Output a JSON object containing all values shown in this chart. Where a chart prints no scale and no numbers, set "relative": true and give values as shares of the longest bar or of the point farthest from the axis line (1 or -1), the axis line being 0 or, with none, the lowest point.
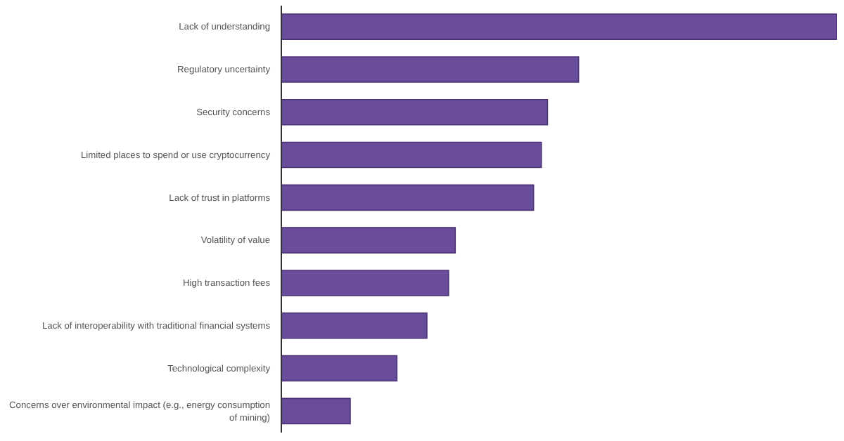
{
  "chart_data": {
    "type": "bar",
    "orientation": "horizontal",
    "relative": true,
    "categories": [
      "Lack of understanding",
      "Regulatory uncertainty",
      "Security concerns",
      "Limited places to spend or use cryptocurrency",
      "Lack of trust in platforms",
      "Volatility of value",
      "High transaction fees",
      "Lack of interoperability with traditional financial systems",
      "Technological complexity",
      "Concerns over environmental impact (e.g., energy consumption of mining)"
    ],
    "values": [
      1,
      0.535,
      0.479,
      0.468,
      0.454,
      0.313,
      0.301,
      0.262,
      0.208,
      0.124
    ],
    "color": "#6a4c9c",
    "grid": false,
    "legend": false
  }
}
